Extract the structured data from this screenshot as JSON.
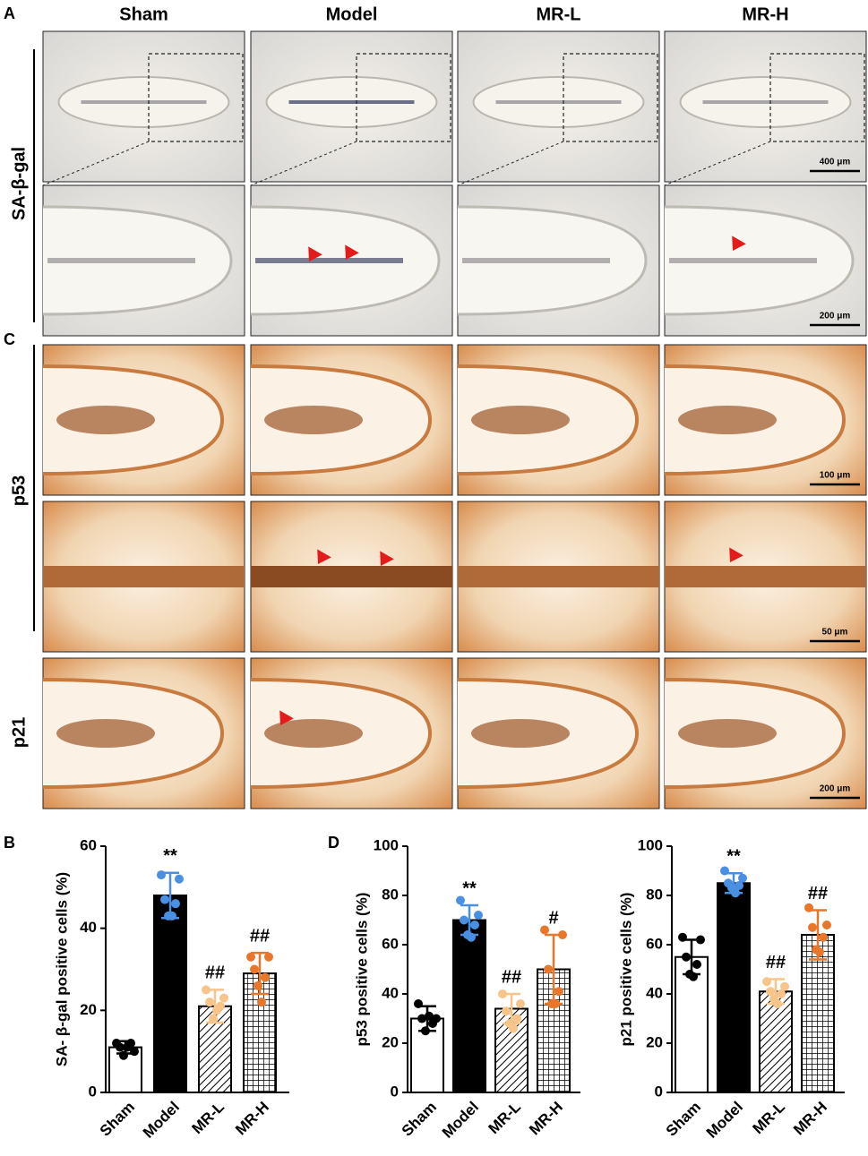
{
  "figure": {
    "panel_labels": [
      "A",
      "C",
      "B",
      "D"
    ],
    "columns": [
      "Sham",
      "Model",
      "MR-L",
      "MR-H"
    ],
    "stains": [
      "SA-β-gal",
      "p53",
      "p21"
    ],
    "scale_bars": [
      "400 μm",
      "200 μm",
      "100 μm",
      "50 μm",
      "200 μm"
    ]
  },
  "chart_data": [
    {
      "type": "bar",
      "ylabel": "SA- β-gal positive cells (%)",
      "categories": [
        "Sham",
        "Model",
        "MR-L",
        "MR-H"
      ],
      "values": [
        11,
        48,
        21,
        29
      ],
      "errors": [
        1.5,
        5.5,
        4,
        5
      ],
      "points": [
        [
          12,
          10,
          11,
          12,
          9,
          11
        ],
        [
          53,
          52,
          47,
          46,
          43,
          43
        ],
        [
          25,
          23,
          22,
          21,
          18,
          20
        ],
        [
          33,
          33,
          30,
          28,
          26,
          22
        ]
      ],
      "annotations": [
        null,
        "**",
        "##",
        "##"
      ],
      "bar_styles": [
        "white",
        "black",
        "diagonal-hatch",
        "crosshatch"
      ],
      "point_colors": [
        "#000000",
        "#4a90e2",
        "#f7c48a",
        "#e8772b"
      ],
      "ylim": [
        0,
        60
      ],
      "yticks": [
        0,
        20,
        40,
        60
      ]
    },
    {
      "type": "bar",
      "ylabel": "p53  positive cells (%)",
      "categories": [
        "Sham",
        "Model",
        "MR-L",
        "MR-H"
      ],
      "values": [
        30,
        70,
        34,
        50
      ],
      "errors": [
        5,
        6,
        6,
        14
      ],
      "points": [
        [
          36,
          30,
          30,
          28,
          25,
          31
        ],
        [
          78,
          72,
          70,
          68,
          64,
          63
        ],
        [
          40,
          36,
          33,
          30,
          28,
          26
        ],
        [
          66,
          64,
          50,
          41,
          36,
          36
        ]
      ],
      "annotations": [
        null,
        "**",
        "##",
        "#"
      ],
      "bar_styles": [
        "white",
        "black",
        "diagonal-hatch",
        "crosshatch"
      ],
      "point_colors": [
        "#000000",
        "#4a90e2",
        "#f7c48a",
        "#e8772b"
      ],
      "ylim": [
        0,
        100
      ],
      "yticks": [
        0,
        20,
        40,
        60,
        80,
        100
      ]
    },
    {
      "type": "bar",
      "ylabel": "p21 positive cells (%)",
      "categories": [
        "Sham",
        "Model",
        "MR-L",
        "MR-H"
      ],
      "values": [
        55,
        85,
        41,
        64
      ],
      "errors": [
        7,
        4,
        5,
        10
      ],
      "points": [
        [
          63,
          62,
          55,
          52,
          48,
          47
        ],
        [
          90,
          87,
          85,
          84,
          83,
          81
        ],
        [
          45,
          43,
          41,
          40,
          38,
          36
        ],
        [
          75,
          68,
          67,
          63,
          58,
          57
        ]
      ],
      "annotations": [
        null,
        "**",
        "##",
        "##"
      ],
      "bar_styles": [
        "white",
        "black",
        "diagonal-hatch",
        "crosshatch"
      ],
      "point_colors": [
        "#000000",
        "#4a90e2",
        "#f7c48a",
        "#e8772b"
      ],
      "ylim": [
        0,
        100
      ],
      "yticks": [
        0,
        20,
        40,
        60,
        80,
        100
      ]
    }
  ]
}
